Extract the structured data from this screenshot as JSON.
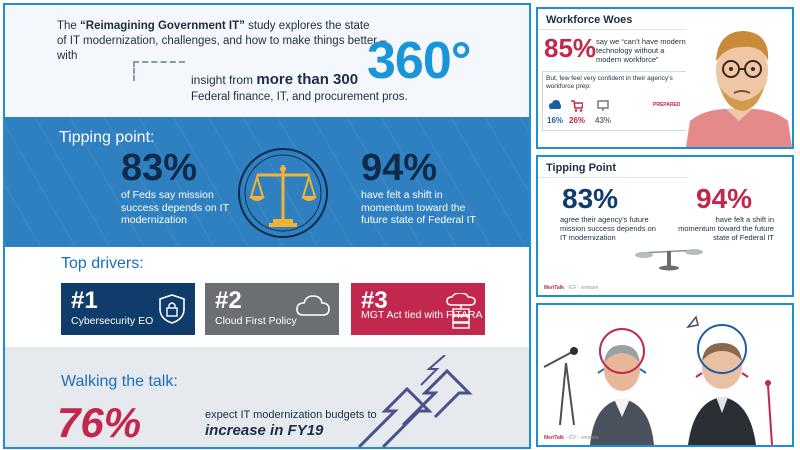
{
  "main": {
    "intro": {
      "line1_pre": "The ",
      "line1_bold": "“Reimagining Government IT”",
      "line1_post": " study explores the state",
      "line2": "of IT modernization, challenges, and how to make things better – with",
      "insight_pre": "insight from ",
      "insight_bold": "more than 300",
      "pros": "Federal finance, IT, and procurement pros.",
      "big_number": "360°"
    },
    "tipping": {
      "title": "Tipping point:",
      "left_pct": "83%",
      "left_desc": "of Feds say mission success depends on IT modernization",
      "right_pct": "94%",
      "right_desc": "have felt a shift in momentum toward the future state of Federal IT",
      "scale_icon": "balance-scale-icon"
    },
    "drivers": {
      "title": "Top drivers:",
      "cards": [
        {
          "num": "#1",
          "label": "Cybersecurity EO",
          "icon": "shield-lock-icon",
          "color": "#0f3c6b"
        },
        {
          "num": "#2",
          "label": "Cloud First Policy",
          "icon": "cloud-icon",
          "color": "#6b6f74"
        },
        {
          "num": "#3",
          "label": "MGT Act tied with FITARA",
          "icon": "cloud-server-icon",
          "color": "#c2284d"
        }
      ]
    },
    "walking": {
      "title": "Walking the talk:",
      "pct": "76%",
      "desc": "expect IT modernization budgets to",
      "emphasis": "increase in FY19",
      "icon": "up-arrows-icon"
    }
  },
  "panels": {
    "workforce": {
      "title": "Workforce Woes",
      "pct": "85%",
      "desc": "say we “can’t have modern technology without a modern workforce”",
      "but_text": "But, few feel very confident in their agency’s workforce prep:",
      "prepared_label": "PREPARED",
      "stats": [
        "16%",
        "26%",
        "43%"
      ],
      "image": "man-with-glasses-photo"
    },
    "tipping": {
      "title": "Tipping Point",
      "left_pct": "83%",
      "left_desc": "agree their agency’s future mission success depends on IT modernization",
      "right_pct": "94%",
      "right_desc": "have felt a shift in momentum toward the future state of Federal IT",
      "image": "balance-scale-image"
    },
    "photo": {
      "image": "two-men-with-headsets-photo"
    }
  },
  "colors": {
    "brand_blue": "#1e8fd4",
    "navy": "#0f3c6b",
    "red": "#c2284d",
    "gray": "#6b6f74",
    "tipping_bg": "#2f80c0"
  }
}
